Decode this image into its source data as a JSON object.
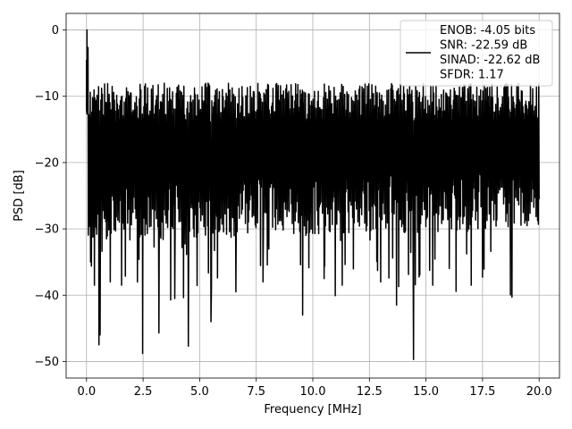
{
  "chart_data": {
    "type": "line",
    "title": "",
    "xlabel": "Frequency [MHz]",
    "ylabel": "PSD [dB]",
    "xlim": [
      -0.9,
      20.9
    ],
    "ylim": [
      -52.5,
      2.5
    ],
    "xticks": [
      0.0,
      2.5,
      5.0,
      7.5,
      10.0,
      12.5,
      15.0,
      17.5,
      20.0
    ],
    "xtick_labels": [
      "0.0",
      "2.5",
      "5.0",
      "7.5",
      "10.0",
      "12.5",
      "15.0",
      "17.5",
      "20.0"
    ],
    "yticks": [
      0,
      -10,
      -20,
      -30,
      -40,
      -50
    ],
    "ytick_labels": [
      "0",
      "−10",
      "−20",
      "−30",
      "−40",
      "−50"
    ],
    "grid": true,
    "legend_position": "top-right",
    "legend_entries": [
      "ENOB: -4.05 bits",
      "SNR: -22.59 dB",
      "SINAD: -22.62 dB",
      "SFDR: 1.17"
    ],
    "line_color": "#000000",
    "grid_color": "#b0b0b0",
    "series": [
      {
        "x_start": 0.0,
        "x_end": 20.0,
        "num_points": 1200,
        "peak": {
          "x": 0.02,
          "y": 0.0
        },
        "floor_start_db": -20.0,
        "floor_end_db": -18.0,
        "top_envelope_db": -8.0,
        "notable_dips": [
          {
            "x": 0.18,
            "y": -35.0
          },
          {
            "x": 0.35,
            "y": -38.5
          },
          {
            "x": 0.55,
            "y": -47.5
          },
          {
            "x": 0.6,
            "y": -46.0
          },
          {
            "x": 1.05,
            "y": -38.0
          },
          {
            "x": 1.55,
            "y": -38.5
          },
          {
            "x": 2.25,
            "y": -38.0
          },
          {
            "x": 2.48,
            "y": -48.8
          },
          {
            "x": 3.2,
            "y": -45.7
          },
          {
            "x": 3.9,
            "y": -40.5
          },
          {
            "x": 4.5,
            "y": -47.7
          },
          {
            "x": 5.5,
            "y": -44.0
          },
          {
            "x": 6.6,
            "y": -39.5
          },
          {
            "x": 7.8,
            "y": -38.0
          },
          {
            "x": 9.55,
            "y": -43.0
          },
          {
            "x": 10.5,
            "y": -37.5
          },
          {
            "x": 11.3,
            "y": -38.5
          },
          {
            "x": 13.0,
            "y": -38.0
          },
          {
            "x": 13.7,
            "y": -41.5
          },
          {
            "x": 14.45,
            "y": -49.7
          },
          {
            "x": 15.3,
            "y": -38.5
          },
          {
            "x": 17.0,
            "y": -38.5
          },
          {
            "x": 18.8,
            "y": -40.3
          }
        ]
      }
    ]
  }
}
